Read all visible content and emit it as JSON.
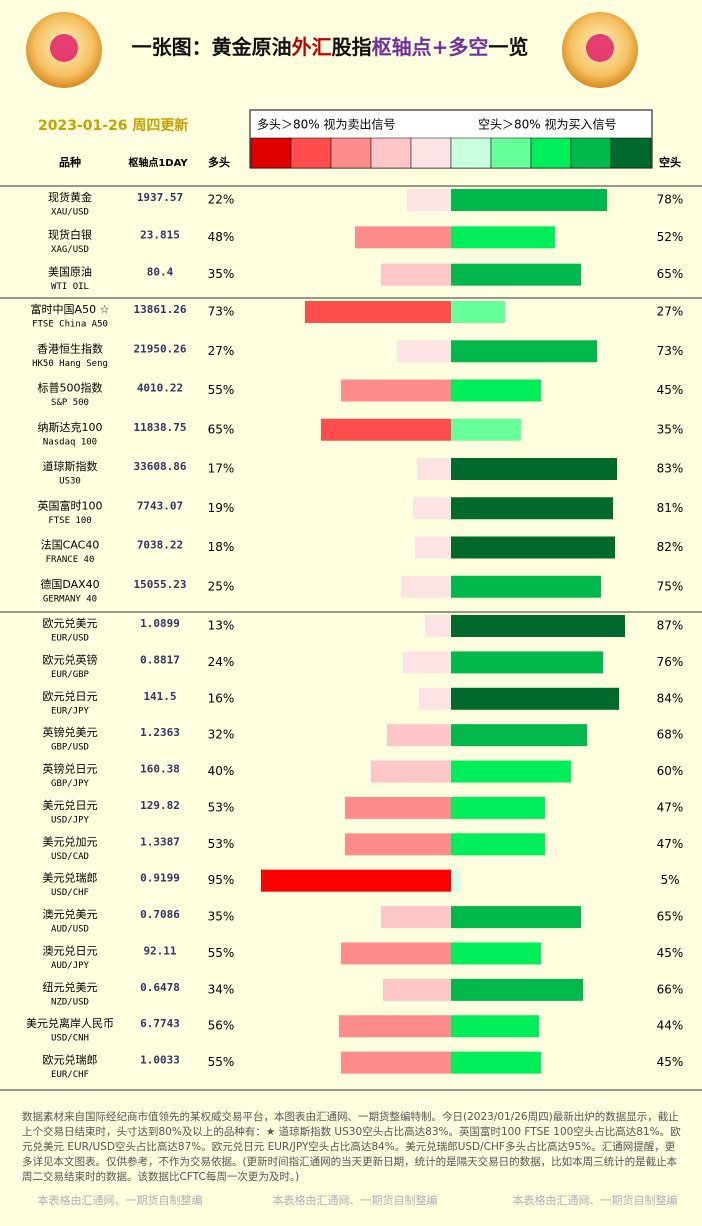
{
  "header": {
    "title_parts": [
      {
        "text": "一张图：黄金原油",
        "color": "#111111"
      },
      {
        "text": "外汇",
        "color": "#c00000"
      },
      {
        "text": "股指",
        "color": "#111111"
      },
      {
        "text": "枢轴点+多空",
        "color": "#7030a0"
      },
      {
        "text": "一览",
        "color": "#111111"
      }
    ],
    "date": "2023-01-26 周四更新"
  },
  "legend": {
    "left": "多头＞80% 视为卖出信号",
    "right": "空头＞80% 视为买入信号",
    "colors": [
      "#e00000",
      "#ff4c4c",
      "#ff8c8c",
      "#ffc6c8",
      "#fde3e3",
      "#c8ffdc",
      "#66ff99",
      "#00ee5a",
      "#00b84c",
      "#006a2c"
    ]
  },
  "columns": {
    "name": "品种",
    "pivot": "枢轴点1DAY",
    "long": "多头",
    "short": "空头"
  },
  "groups": [
    {
      "rows": [
        {
          "name": "现货黄金",
          "code": "XAU/USD",
          "pivot": 1937.57,
          "long": 22,
          "long_label": "22%",
          "long_color": "#fde3e3",
          "short": 78,
          "short_label": "78%",
          "short_color": "#00b84c"
        },
        {
          "name": "现货白银",
          "code": "XAG/USD",
          "pivot": 23.815,
          "long": 48,
          "long_label": "48%",
          "long_color": "#ff8c8c",
          "short": 52,
          "short_label": "52%",
          "short_color": "#00ee5a"
        },
        {
          "name": "美国原油",
          "code": "WTI OIL",
          "pivot": 80.4,
          "long": 35,
          "long_label": "35%",
          "long_color": "#ffc6c8",
          "short": 65,
          "short_label": "65%",
          "short_color": "#00b84c"
        }
      ]
    },
    {
      "rows": [
        {
          "name": "富时中国A50 ☆",
          "code": "FTSE China A50",
          "pivot": 13861.26,
          "long": 73,
          "long_label": "73%",
          "long_color": "#ff4c4c",
          "short": 27,
          "short_label": "27%",
          "short_color": "#66ff99"
        },
        {
          "name": "香港恒生指数",
          "code": "HK50 Hang Seng",
          "pivot": 21950.26,
          "long": 27,
          "long_label": "27%",
          "long_color": "#fde3e3",
          "short": 73,
          "short_label": "73%",
          "short_color": "#00b84c"
        },
        {
          "name": "标普500指数",
          "code": "S&P 500",
          "pivot": 4010.22,
          "long": 55,
          "long_label": "55%",
          "long_color": "#ff8c8c",
          "short": 45,
          "short_label": "45%",
          "short_color": "#00ee5a"
        },
        {
          "name": "纳斯达克100",
          "code": "Nasdaq 100",
          "pivot": 11838.75,
          "long": 65,
          "long_label": "65%",
          "long_color": "#ff4c4c",
          "short": 35,
          "short_label": "35%",
          "short_color": "#66ff99"
        },
        {
          "name": "道琼斯指数",
          "code": "US30",
          "pivot": 33608.86,
          "long": 17,
          "long_label": "17%",
          "long_color": "#fde3e3",
          "short": 83,
          "short_label": "83%",
          "short_color": "#006a2c"
        },
        {
          "name": "英国富时100",
          "code": "FTSE 100",
          "pivot": 7743.07,
          "long": 19,
          "long_label": "19%",
          "long_color": "#fde3e3",
          "short": 81,
          "short_label": "81%",
          "short_color": "#006a2c"
        },
        {
          "name": "法国CAC40",
          "code": "FRANCE 40",
          "pivot": 7038.22,
          "long": 18,
          "long_label": "18%",
          "long_color": "#fde3e3",
          "short": 82,
          "short_label": "82%",
          "short_color": "#006a2c"
        },
        {
          "name": "德国DAX40",
          "code": "GERMANY 40",
          "pivot": 15055.23,
          "long": 25,
          "long_label": "25%",
          "long_color": "#fde3e3",
          "short": 75,
          "short_label": "75%",
          "short_color": "#00b84c"
        }
      ]
    },
    {
      "rows": [
        {
          "name": "欧元兑美元",
          "code": "EUR/USD",
          "pivot": 1.0899,
          "long": 13,
          "long_label": "13%",
          "long_color": "#fde3e3",
          "short": 87,
          "short_label": "87%",
          "short_color": "#006a2c"
        },
        {
          "name": "欧元兑英镑",
          "code": "EUR/GBP",
          "pivot": 0.8817,
          "long": 24,
          "long_label": "24%",
          "long_color": "#fde3e3",
          "short": 76,
          "short_label": "76%",
          "short_color": "#00b84c"
        },
        {
          "name": "欧元兑日元",
          "code": "EUR/JPY",
          "pivot": 141.5,
          "long": 16,
          "long_label": "16%",
          "long_color": "#fde3e3",
          "short": 84,
          "short_label": "84%",
          "short_color": "#006a2c"
        },
        {
          "name": "英镑兑美元",
          "code": "GBP/USD",
          "pivot": 1.2363,
          "long": 32,
          "long_label": "32%",
          "long_color": "#ffc6c8",
          "short": 68,
          "short_label": "68%",
          "short_color": "#00b84c"
        },
        {
          "name": "英镑兑日元",
          "code": "GBP/JPY",
          "pivot": 160.38,
          "long": 40,
          "long_label": "40%",
          "long_color": "#ffc6c8",
          "short": 60,
          "short_label": "60%",
          "short_color": "#00ee5a"
        },
        {
          "name": "美元兑日元",
          "code": "USD/JPY",
          "pivot": 129.82,
          "long": 53,
          "long_label": "53%",
          "long_color": "#ff8c8c",
          "short": 47,
          "short_label": "47%",
          "short_color": "#00ee5a"
        },
        {
          "name": "美元兑加元",
          "code": "USD/CAD",
          "pivot": 1.3387,
          "long": 53,
          "long_label": "53%",
          "long_color": "#ff8c8c",
          "short": 47,
          "short_label": "47%",
          "short_color": "#00ee5a"
        },
        {
          "name": "美元兑瑞郎",
          "code": "USD/CHF",
          "pivot": 0.9199,
          "long": 95,
          "long_label": "95%",
          "long_color": "#ff0000",
          "short": 5,
          "short_label": "5%",
          "short_color": "#dcfce8"
        },
        {
          "name": "澳元兑美元",
          "code": "AUD/USD",
          "pivot": 0.7086,
          "long": 35,
          "long_label": "35%",
          "long_color": "#ffc6c8",
          "short": 65,
          "short_label": "65%",
          "short_color": "#00b84c"
        },
        {
          "name": "澳元兑日元",
          "code": "AUD/JPY",
          "pivot": 92.11,
          "long": 55,
          "long_label": "55%",
          "long_color": "#ff8c8c",
          "short": 45,
          "short_label": "45%",
          "short_color": "#00ee5a"
        },
        {
          "name": "纽元兑美元",
          "code": "NZD/USD",
          "pivot": 0.6478,
          "long": 34,
          "long_label": "34%",
          "long_color": "#ffc6c8",
          "short": 66,
          "short_label": "66%",
          "short_color": "#00b84c"
        },
        {
          "name": "美元兑离岸人民币",
          "code": "USD/CNH",
          "pivot": 6.7743,
          "long": 56,
          "long_label": "56%",
          "long_color": "#ff8c8c",
          "short": 44,
          "short_label": "44%",
          "short_color": "#00ee5a"
        },
        {
          "name": "欧元兑瑞郎",
          "code": "EUR/CHF",
          "pivot": 1.0033,
          "long": 55,
          "long_label": "55%",
          "long_color": "#ff8c8c",
          "short": 45,
          "short_label": "45%",
          "short_color": "#00ee5a"
        }
      ]
    }
  ],
  "footer": {
    "note": "数据素材来自国际经纪商市值领先的某权威交易平台，本图表由汇通网、一期货整编特制。今日(2023/01/26周四)最新出炉的数据显示，截止上个交易日结束时，头寸达到80%及以上的品种有：★ 道琼斯指数 US30空头占比高达83%。英国富时100 FTSE 100空头占比高达81%。欧元兑美元 EUR/USD空头占比高达87%。欧元兑日元 EUR/JPY空头占比高达84%。美元兑瑞郎USD/CHF多头占比高达95%。汇通网提醒，更多详见本文图表。仅供参考，不作为交易依据。(更新时间指汇通网的当天更新日期，统计的是隔天交易日的数据，比如本周三统计的是截止本周二交易结束时的数据。该数据比CFTC每周一次更为及时。)",
    "credit": "本表格由汇通网、一期货自制整编"
  }
}
